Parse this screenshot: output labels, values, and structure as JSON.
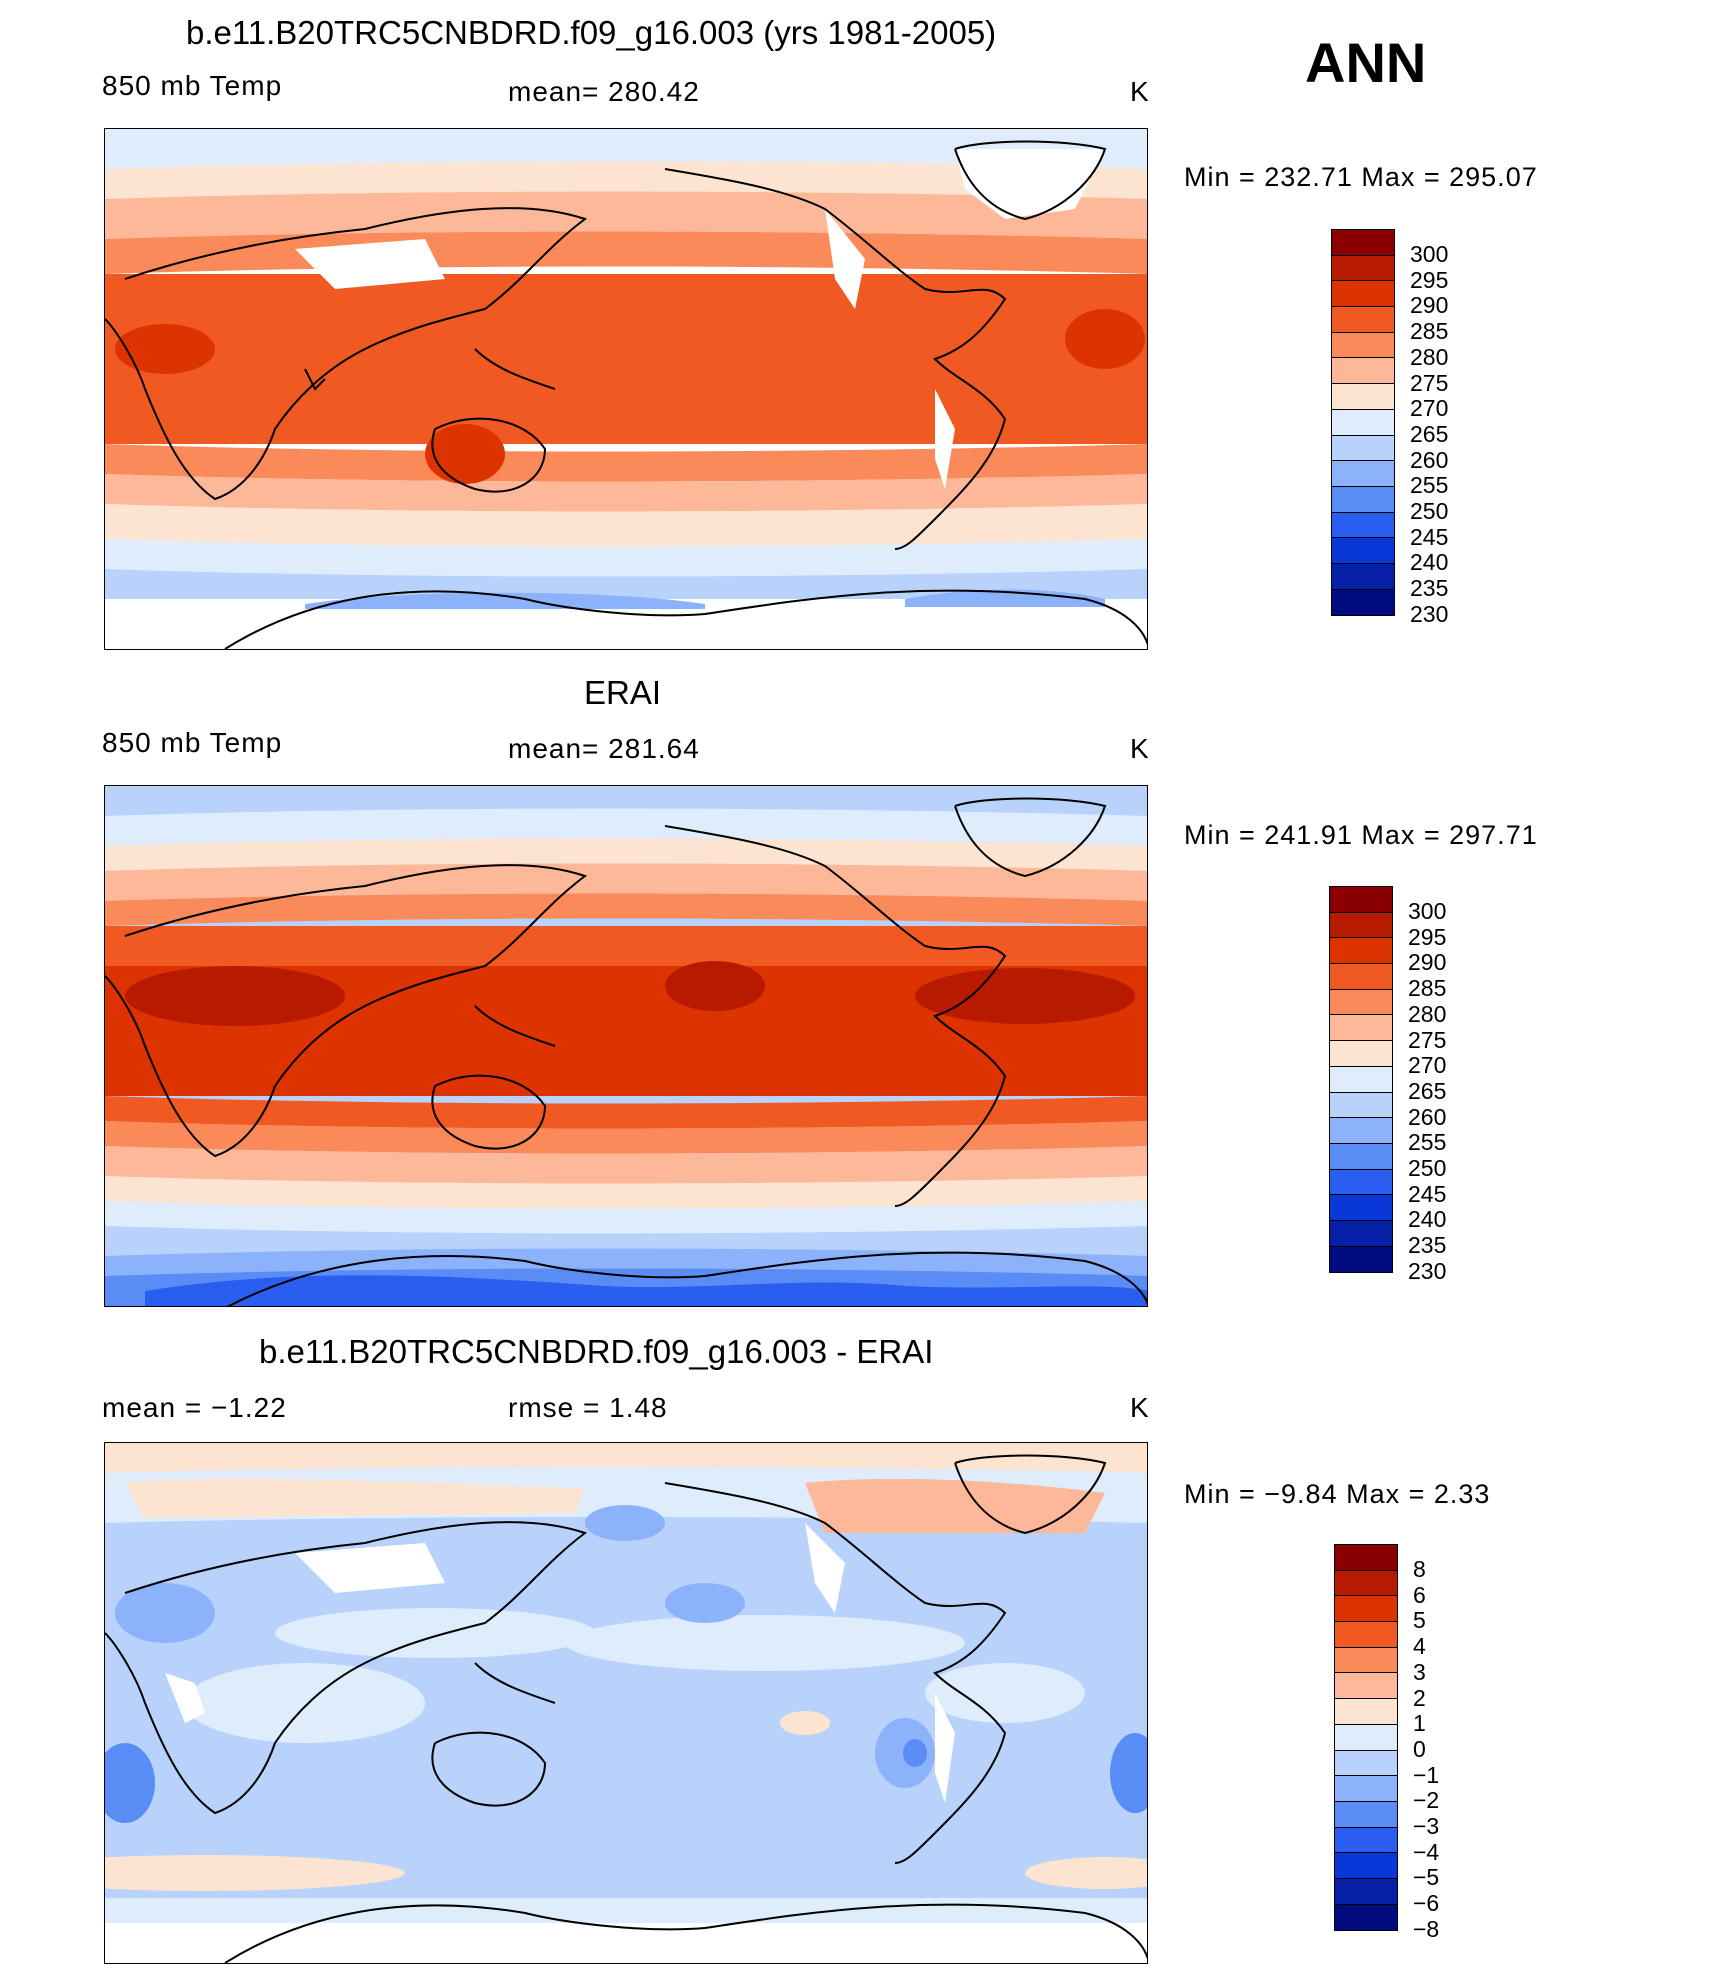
{
  "season": "ANN",
  "colors": {
    "temp_scale": [
      "#8a0000",
      "#b81a00",
      "#dd3300",
      "#f05a22",
      "#fa8a5a",
      "#fcb898",
      "#fde4d0",
      "#deecfb",
      "#b8d2fb",
      "#8cb2fb",
      "#5a8cf5",
      "#2a5ef0",
      "#0a38d8",
      "#0620a8",
      "#000c80"
    ],
    "diff_scale": [
      "#8a0000",
      "#b81a00",
      "#dd3300",
      "#f05a22",
      "#fa8a5a",
      "#fcb898",
      "#fde4d0",
      "#deecfb",
      "#b8d2fb",
      "#8cb2fb",
      "#5a8cf5",
      "#2a5ef0",
      "#0a38d8",
      "#0620a8",
      "#000c80"
    ]
  },
  "panels": [
    {
      "title": "b.e11.B20TRC5CNBDRD.f09_g16.003 (yrs 1981-2005)",
      "left_label": "850 mb Temp",
      "center_label": "mean=  280.42",
      "units": "K",
      "minmax": "Min  =  232.71  Max  =  295.07",
      "colorbar_labels": [
        "300",
        "295",
        "290",
        "285",
        "280",
        "275",
        "270",
        "265",
        "260",
        "255",
        "250",
        "245",
        "240",
        "235",
        "230"
      ]
    },
    {
      "title": "ERAI",
      "left_label": "850 mb Temp",
      "center_label": "mean=  281.64",
      "units": "K",
      "minmax": "Min  =  241.91  Max  =  297.71",
      "colorbar_labels": [
        "300",
        "295",
        "290",
        "285",
        "280",
        "275",
        "270",
        "265",
        "260",
        "255",
        "250",
        "245",
        "240",
        "235",
        "230"
      ]
    },
    {
      "title": "b.e11.B20TRC5CNBDRD.f09_g16.003 - ERAI",
      "left_label": "mean  =    −1.22",
      "center_label": "rmse  =     1.48",
      "units": "K",
      "minmax": "Min  =    −9.84  Max  =     2.33",
      "colorbar_labels": [
        "8",
        "6",
        "5",
        "4",
        "3",
        "2",
        "1",
        "0",
        "−1",
        "−2",
        "−3",
        "−4",
        "−5",
        "−6",
        "−8"
      ]
    }
  ]
}
